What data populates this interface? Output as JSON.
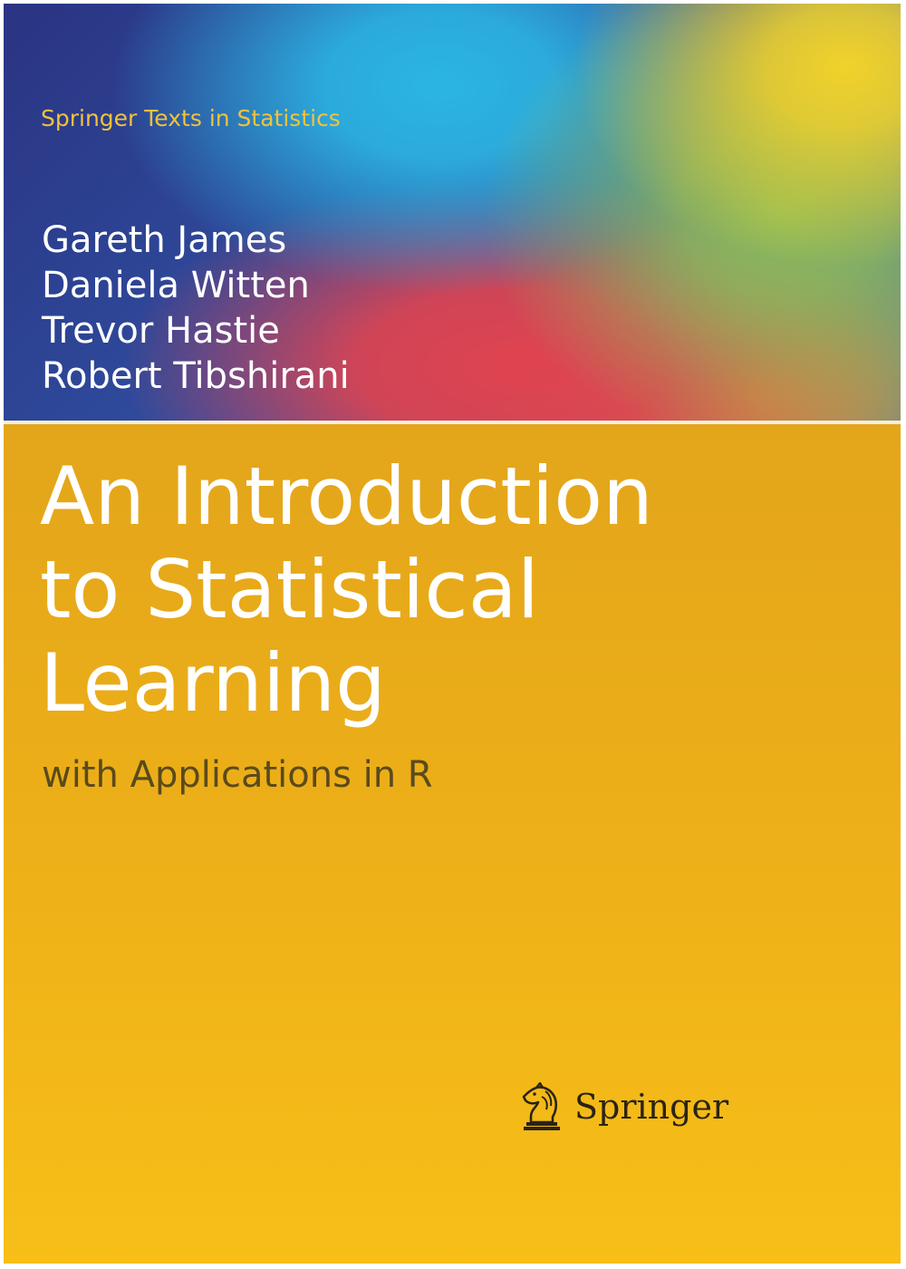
{
  "cover": {
    "series": "Springer Texts in Statistics",
    "authors": [
      "Gareth James",
      "Daniela Witten",
      "Trevor Hastie",
      "Robert Tibshirani"
    ],
    "title_lines": [
      "An Introduction",
      "to Statistical",
      "Learning"
    ],
    "subtitle": "with Applications in R",
    "publisher": "Springer"
  },
  "colors": {
    "series_text": "#f0c23c",
    "title_text": "#ffffff",
    "subtitle_text": "#5a4a1c",
    "band_yellow": "#eeb118",
    "band_blue": "#2e3f8f",
    "band_red": "#e0434f",
    "band_cyan": "#2bb5e3"
  },
  "icons": {
    "publisher_logo": "chess-knight-icon"
  }
}
